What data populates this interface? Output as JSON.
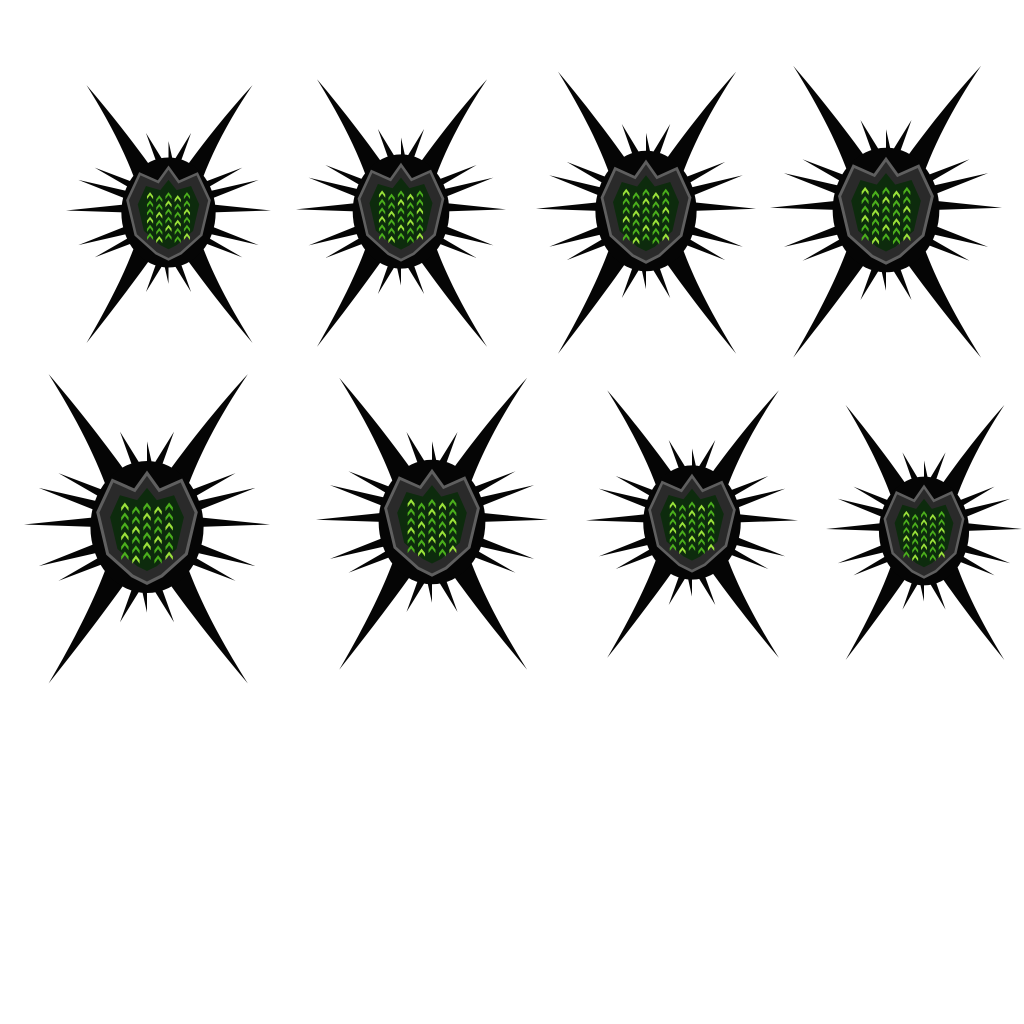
{
  "sprite_sheet": {
    "background_color": "#ffffff",
    "rows": 2,
    "columns": 4,
    "frame_count": 8,
    "sprite_name": "spiked-green-core-enemy",
    "colors": {
      "spikes": "#050505",
      "shell_ring": "#2a2a2a",
      "shell_highlight": "#5f5f5f",
      "core_dark": "#0d2b0d",
      "core_glow": "#4caf1c",
      "core_bright": "#9be23a"
    }
  }
}
